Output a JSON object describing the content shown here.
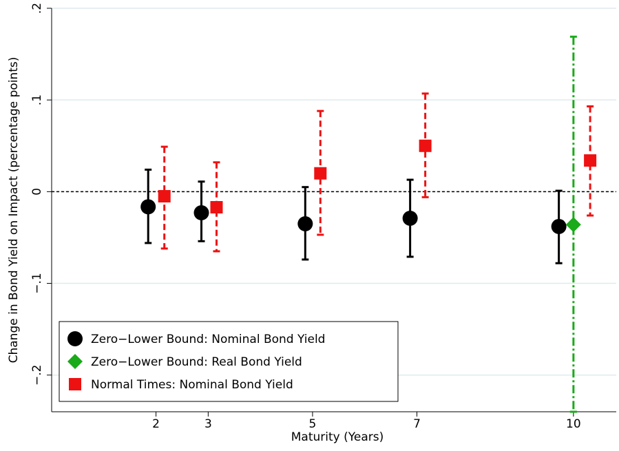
{
  "chart_data": {
    "type": "errorbar",
    "xlabel": "Maturity (Years)",
    "ylabel": "Change in Bond Yield on Impact (percentage points)",
    "xlim": [
      0,
      10.82
    ],
    "xticks": [
      2,
      3,
      5,
      7,
      10
    ],
    "ylim": [
      -0.24,
      0.2
    ],
    "yticks": [
      {
        "value": -0.2,
        "label": "−.2"
      },
      {
        "value": -0.1,
        "label": "−.1"
      },
      0,
      {
        "value": 0.1,
        "label": ".1"
      },
      {
        "value": 0.2,
        "label": ".2"
      }
    ],
    "grid": true,
    "hline": 0,
    "legend": "lower left",
    "series": [
      {
        "name": "Zero−Lower Bound: Nominal Bond Yield",
        "color": "#000000",
        "marker": "circle",
        "line": "solid",
        "x": [
          1.85,
          2.87,
          4.86,
          6.87,
          9.72
        ],
        "values": [
          -0.0165,
          -0.023,
          -0.035,
          -0.029,
          -0.038
        ],
        "lower": [
          -0.056,
          -0.054,
          -0.074,
          -0.071,
          -0.078
        ],
        "upper": [
          0.024,
          0.011,
          0.005,
          0.013,
          0.001
        ]
      },
      {
        "name": "Zero−Lower Bound: Real Bond Yield",
        "color": "#1aaa1a",
        "marker": "diamond",
        "line": "dashdot",
        "x": [
          10
        ],
        "values": [
          -0.036
        ],
        "lower": [
          -0.24
        ],
        "upper": [
          0.169
        ]
      },
      {
        "name": "Normal Times: Nominal Bond Yield",
        "color": "#ee1111",
        "marker": "square",
        "line": "dashed",
        "x": [
          2.16,
          3.16,
          5.15,
          7.16,
          10.32
        ],
        "values": [
          -0.005,
          -0.017,
          0.02,
          0.05,
          0.034
        ],
        "lower": [
          -0.062,
          -0.065,
          -0.047,
          -0.006,
          -0.026
        ],
        "upper": [
          0.049,
          0.032,
          0.088,
          0.107,
          0.093
        ]
      }
    ]
  }
}
